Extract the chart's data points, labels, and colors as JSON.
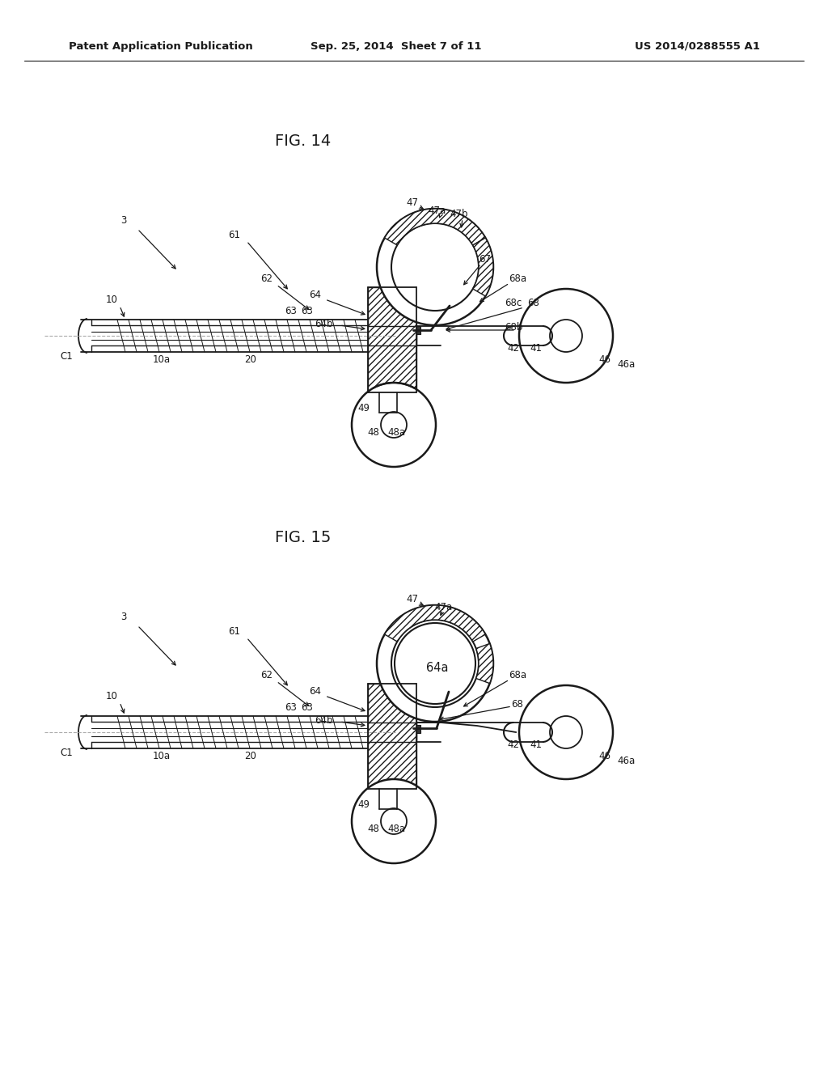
{
  "bg_color": "#ffffff",
  "header_left": "Patent Application Publication",
  "header_mid": "Sep. 25, 2014  Sheet 7 of 11",
  "header_right": "US 2014/0288555 A1",
  "fig14_title": "FIG. 14",
  "fig15_title": "FIG. 15",
  "line_color": "#1a1a1a",
  "label_fontsize": 8.5,
  "title_fontsize": 14,
  "header_fontsize": 9.5
}
